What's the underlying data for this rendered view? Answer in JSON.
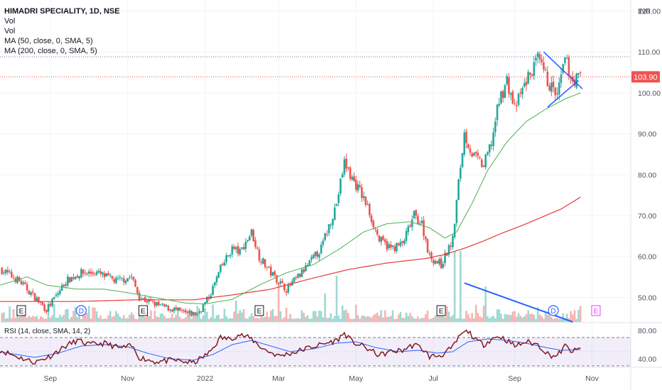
{
  "header": {
    "symbol": "HIMADRI SPECIALITY, 1D, NSE",
    "lines": [
      "Vol",
      "Vol",
      "MA (50, close, 0, SMA, 5)",
      "MA (200, close, 0, SMA, 5)"
    ]
  },
  "currency": "INR",
  "last_price_label": "103.90",
  "rsi_label": "RSI (14, close, SMA, 14, 2)",
  "colors": {
    "up": "#26a69a",
    "down": "#ef5350",
    "ma50": "#4caf50",
    "ma200": "#e53935",
    "rsi": "#801922",
    "rsi_ma": "#2962ff",
    "trendline": "#2962ff",
    "price_line": "#ef5350"
  },
  "markers": {
    "earnings": "E",
    "dividend": "D"
  },
  "chart_data": [
    {
      "type": "line",
      "name": "price",
      "ylabel": "INR",
      "ylim": [
        44,
        122
      ],
      "y_ticks": [
        "120.00",
        "110.00",
        "100.00",
        "90.00",
        "80.00",
        "70.00",
        "60.00",
        "50.00"
      ],
      "y_tick_values": [
        120,
        110,
        100,
        90,
        80,
        70,
        60,
        50
      ],
      "x_ticks": [
        "Sep",
        "Nov",
        "2022",
        "Mar",
        "May",
        "Jul",
        "Sep",
        "Nov"
      ],
      "x_tick_positions": [
        0.8,
        2.8,
        4.8,
        6.7,
        8.7,
        10.7,
        12.8,
        14.8
      ],
      "x_range": [
        -0.5,
        15.8
      ],
      "last_price": 103.9,
      "price_knots": [
        [
          -0.5,
          57
        ],
        [
          0.0,
          54
        ],
        [
          0.4,
          50
        ],
        [
          0.7,
          47
        ],
        [
          1.0,
          51
        ],
        [
          1.2,
          54
        ],
        [
          1.6,
          56
        ],
        [
          2.0,
          56
        ],
        [
          2.5,
          54
        ],
        [
          2.9,
          55
        ],
        [
          3.1,
          50
        ],
        [
          3.6,
          48
        ],
        [
          4.0,
          47
        ],
        [
          4.3,
          46
        ],
        [
          4.6,
          46
        ],
        [
          4.9,
          50
        ],
        [
          5.2,
          57
        ],
        [
          5.5,
          62
        ],
        [
          5.7,
          61
        ],
        [
          6.0,
          66
        ],
        [
          6.2,
          60
        ],
        [
          6.5,
          56
        ],
        [
          6.9,
          52
        ],
        [
          7.3,
          56
        ],
        [
          7.8,
          62
        ],
        [
          8.2,
          73
        ],
        [
          8.4,
          83
        ],
        [
          8.6,
          79
        ],
        [
          8.8,
          76
        ],
        [
          9.0,
          72
        ],
        [
          9.3,
          64
        ],
        [
          9.6,
          62
        ],
        [
          9.9,
          63
        ],
        [
          10.2,
          70
        ],
        [
          10.4,
          68
        ],
        [
          10.6,
          60
        ],
        [
          10.9,
          58
        ],
        [
          11.2,
          64
        ],
        [
          11.35,
          78
        ],
        [
          11.5,
          90
        ],
        [
          11.7,
          85
        ],
        [
          12.0,
          82
        ],
        [
          12.2,
          88
        ],
        [
          12.4,
          98
        ],
        [
          12.6,
          103
        ],
        [
          12.8,
          96
        ],
        [
          13.1,
          103
        ],
        [
          13.4,
          108
        ],
        [
          13.7,
          102
        ],
        [
          13.9,
          99
        ],
        [
          14.1,
          108
        ],
        [
          14.3,
          103
        ],
        [
          14.5,
          103.9
        ]
      ],
      "ma50_knots": [
        [
          -0.5,
          53
        ],
        [
          0.2,
          55
        ],
        [
          0.7,
          53
        ],
        [
          1.5,
          52
        ],
        [
          2.2,
          52
        ],
        [
          2.9,
          51
        ],
        [
          3.6,
          49.8
        ],
        [
          4.3,
          48.6
        ],
        [
          4.8,
          48.4
        ],
        [
          5.5,
          49.5
        ],
        [
          6.2,
          53
        ],
        [
          6.9,
          56
        ],
        [
          7.6,
          58
        ],
        [
          8.3,
          62
        ],
        [
          8.9,
          66
        ],
        [
          9.5,
          68
        ],
        [
          10.1,
          68.5
        ],
        [
          10.6,
          67
        ],
        [
          11.0,
          64.5
        ],
        [
          11.3,
          66
        ],
        [
          11.7,
          73
        ],
        [
          12.1,
          81
        ],
        [
          12.6,
          88
        ],
        [
          13.1,
          93
        ],
        [
          13.6,
          96
        ],
        [
          14.1,
          98.5
        ],
        [
          14.5,
          100
        ]
      ],
      "ma200_knots": [
        [
          -0.5,
          49
        ],
        [
          1.5,
          49
        ],
        [
          3.0,
          49.4
        ],
        [
          4.5,
          49.4
        ],
        [
          5.5,
          50.6
        ],
        [
          6.5,
          52
        ],
        [
          7.5,
          54.5
        ],
        [
          8.5,
          56.8
        ],
        [
          9.5,
          58.4
        ],
        [
          10.5,
          59.5
        ],
        [
          11.0,
          60.5
        ],
        [
          11.5,
          62
        ],
        [
          12.0,
          63.8
        ],
        [
          12.5,
          65.8
        ],
        [
          13.0,
          67.6
        ],
        [
          13.5,
          69.6
        ],
        [
          14.0,
          71.6
        ],
        [
          14.5,
          74.5
        ]
      ],
      "volume_spikes": [
        [
          6.7,
          0.55
        ],
        [
          7.9,
          0.4
        ],
        [
          8.2,
          0.65
        ],
        [
          11.25,
          1.0
        ],
        [
          11.4,
          1.0
        ],
        [
          12.05,
          0.5
        ],
        [
          5.6,
          0.3
        ]
      ],
      "earnings_x": [
        0.05,
        3.2,
        6.2,
        10.9,
        14.9
      ],
      "dividend_x": [
        1.6,
        13.8
      ],
      "triangle_lines": [
        [
          [
            13.55,
            110
          ],
          [
            14.55,
            101
          ]
        ],
        [
          [
            13.65,
            96.5
          ],
          [
            14.45,
            103
          ]
        ]
      ],
      "volume_trendline": [
        [
          11.5,
          53.5
        ],
        [
          14.3,
          44
        ]
      ]
    },
    {
      "type": "line",
      "name": "RSI",
      "ylim": [
        30,
        90
      ],
      "y_ticks": [
        "80.00",
        "40.00"
      ],
      "y_tick_values": [
        80,
        40
      ],
      "bands": [
        70,
        30
      ],
      "rsi_knots": [
        [
          -0.5,
          52
        ],
        [
          0.0,
          42
        ],
        [
          0.4,
          35
        ],
        [
          0.8,
          44
        ],
        [
          1.2,
          58
        ],
        [
          1.5,
          66
        ],
        [
          1.8,
          60
        ],
        [
          2.2,
          62
        ],
        [
          2.6,
          55
        ],
        [
          2.9,
          58
        ],
        [
          3.1,
          42
        ],
        [
          3.5,
          36
        ],
        [
          4.0,
          38
        ],
        [
          4.5,
          34
        ],
        [
          4.9,
          48
        ],
        [
          5.2,
          70
        ],
        [
          5.4,
          68
        ],
        [
          5.7,
          74
        ],
        [
          6.0,
          68
        ],
        [
          6.3,
          54
        ],
        [
          6.7,
          44
        ],
        [
          7.1,
          49
        ],
        [
          7.5,
          56
        ],
        [
          7.8,
          60
        ],
        [
          8.2,
          66
        ],
        [
          8.4,
          76
        ],
        [
          8.6,
          64
        ],
        [
          8.9,
          57
        ],
        [
          9.3,
          45
        ],
        [
          9.6,
          50
        ],
        [
          9.9,
          52
        ],
        [
          10.2,
          60
        ],
        [
          10.4,
          55
        ],
        [
          10.6,
          43
        ],
        [
          10.9,
          45
        ],
        [
          11.2,
          56
        ],
        [
          11.4,
          74
        ],
        [
          11.6,
          79
        ],
        [
          11.8,
          66
        ],
        [
          12.0,
          60
        ],
        [
          12.2,
          68
        ],
        [
          12.4,
          72
        ],
        [
          12.6,
          66
        ],
        [
          12.8,
          58
        ],
        [
          13.1,
          64
        ],
        [
          13.4,
          60
        ],
        [
          13.7,
          45
        ],
        [
          13.9,
          44
        ],
        [
          14.1,
          58
        ],
        [
          14.3,
          50
        ],
        [
          14.5,
          54
        ]
      ],
      "rsi_ma_knots": [
        [
          -0.5,
          50
        ],
        [
          0.4,
          42
        ],
        [
          1.0,
          48
        ],
        [
          1.6,
          58
        ],
        [
          2.2,
          60
        ],
        [
          2.8,
          57
        ],
        [
          3.3,
          48
        ],
        [
          3.9,
          40
        ],
        [
          4.5,
          38
        ],
        [
          5.0,
          46
        ],
        [
          5.5,
          60
        ],
        [
          6.0,
          66
        ],
        [
          6.5,
          58
        ],
        [
          7.0,
          50
        ],
        [
          7.6,
          54
        ],
        [
          8.2,
          62
        ],
        [
          8.7,
          64
        ],
        [
          9.2,
          56
        ],
        [
          9.8,
          50
        ],
        [
          10.3,
          52
        ],
        [
          10.8,
          48
        ],
        [
          11.2,
          50
        ],
        [
          11.6,
          64
        ],
        [
          12.1,
          68
        ],
        [
          12.6,
          66
        ],
        [
          13.1,
          62
        ],
        [
          13.6,
          56
        ],
        [
          14.0,
          52
        ],
        [
          14.5,
          53
        ]
      ]
    }
  ]
}
